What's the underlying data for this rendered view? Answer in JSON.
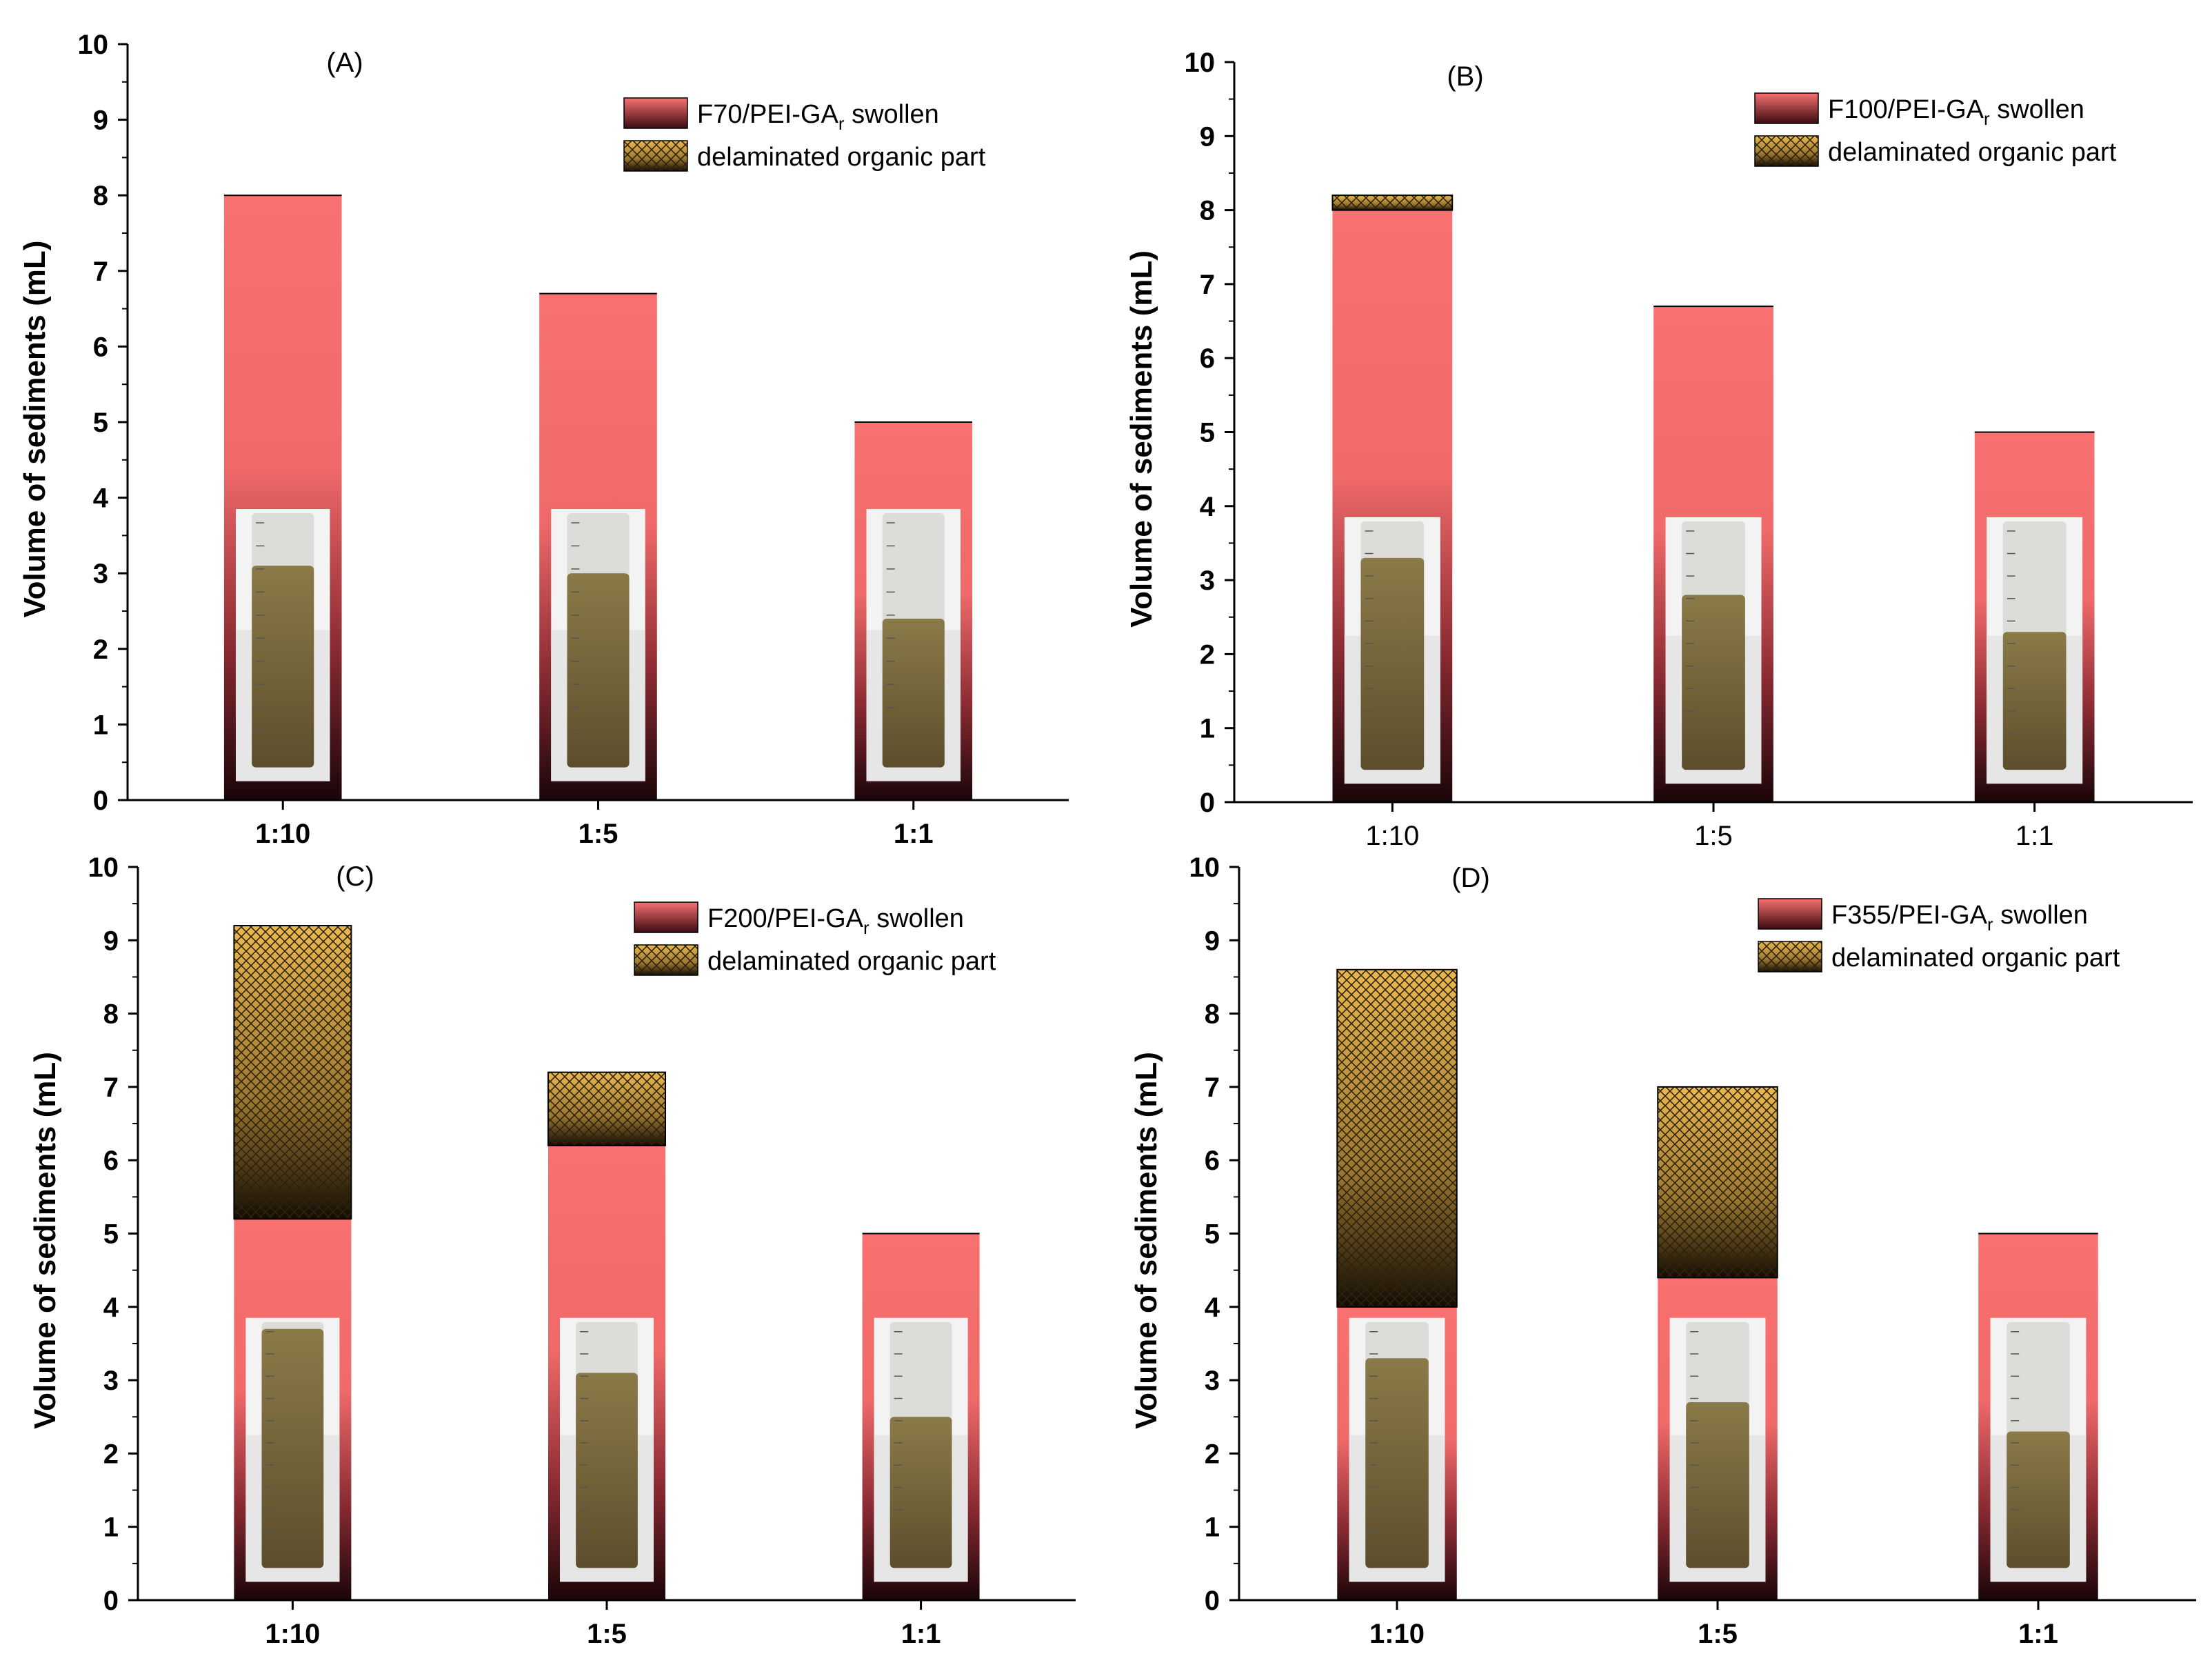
{
  "chart_data": [
    {
      "type": "bar",
      "panel_label": "(A)",
      "categories": [
        "1:10",
        "1:5",
        "1:1"
      ],
      "category_labels_bold": true,
      "ylabel": "Volume of sediments (mL)",
      "ylim": [
        0,
        10
      ],
      "yticks": [
        "0",
        "1",
        "2",
        "3",
        "4",
        "5",
        "6",
        "7",
        "8",
        "9",
        "10"
      ],
      "legend_position": "top-right",
      "series": [
        {
          "name": "F70/PEI-GA",
          "name_subscript": "r",
          "name_suffix": " swollen",
          "values": [
            8.0,
            6.7,
            5.0
          ]
        },
        {
          "name": "delaminated organic part",
          "values": [
            0,
            0,
            0
          ]
        }
      ],
      "tube_fill": [
        2.4,
        2.3,
        1.7
      ]
    },
    {
      "type": "bar",
      "panel_label": "(B)",
      "categories": [
        "1:10",
        "1:5",
        "1:1"
      ],
      "category_labels_bold": false,
      "ylabel": "Volume of sediments (mL)",
      "ylim": [
        0,
        10
      ],
      "yticks": [
        "0",
        "1",
        "2",
        "3",
        "4",
        "5",
        "6",
        "7",
        "8",
        "9",
        "10"
      ],
      "legend_position": "top-right",
      "series": [
        {
          "name": "F100/PEI-GA",
          "name_subscript": "r",
          "name_suffix": " swollen",
          "values": [
            8.0,
            6.7,
            5.0
          ]
        },
        {
          "name": "delaminated organic part",
          "values": [
            0.2,
            0,
            0
          ]
        }
      ],
      "tube_fill": [
        2.6,
        2.1,
        1.6
      ]
    },
    {
      "type": "bar",
      "panel_label": "(C)",
      "categories": [
        "1:10",
        "1:5",
        "1:1"
      ],
      "category_labels_bold": true,
      "ylabel": "Volume of sediments (mL)",
      "ylim": [
        0,
        10
      ],
      "yticks": [
        "0",
        "1",
        "2",
        "3",
        "4",
        "5",
        "6",
        "7",
        "8",
        "9",
        "10"
      ],
      "legend_position": "top-right",
      "series": [
        {
          "name": "F200/PEI-GA",
          "name_subscript": "r",
          "name_suffix": " swollen",
          "values": [
            5.2,
            6.2,
            5.0
          ]
        },
        {
          "name": "delaminated organic part",
          "values": [
            4.0,
            1.0,
            0
          ]
        }
      ],
      "tube_fill": [
        3.0,
        2.4,
        1.8
      ]
    },
    {
      "type": "bar",
      "panel_label": "(D)",
      "categories": [
        "1:10",
        "1:5",
        "1:1"
      ],
      "category_labels_bold": true,
      "ylabel": "Volume of sediments (mL)",
      "ylim": [
        0,
        10
      ],
      "yticks": [
        "0",
        "1",
        "2",
        "3",
        "4",
        "5",
        "6",
        "7",
        "8",
        "9",
        "10"
      ],
      "legend_position": "top-right",
      "series": [
        {
          "name": "F355/PEI-GA",
          "name_subscript": "r",
          "name_suffix": " swollen",
          "values": [
            4.0,
            4.4,
            5.0
          ]
        },
        {
          "name": "delaminated organic part",
          "values": [
            4.6,
            2.6,
            0
          ]
        }
      ],
      "tube_fill": [
        2.6,
        2.0,
        1.6
      ]
    }
  ],
  "colors": {
    "swollen_top": "#f87070",
    "swollen_mid": "#f06a6a",
    "swollen_bottom": "#1a0508",
    "hatch_top": "#e9b54a",
    "hatch_bottom": "#120c04",
    "hatch_line": "#3a2a0c",
    "tube_sediment": "#7a6a3e",
    "tube_bg": "#f2f2f2"
  }
}
